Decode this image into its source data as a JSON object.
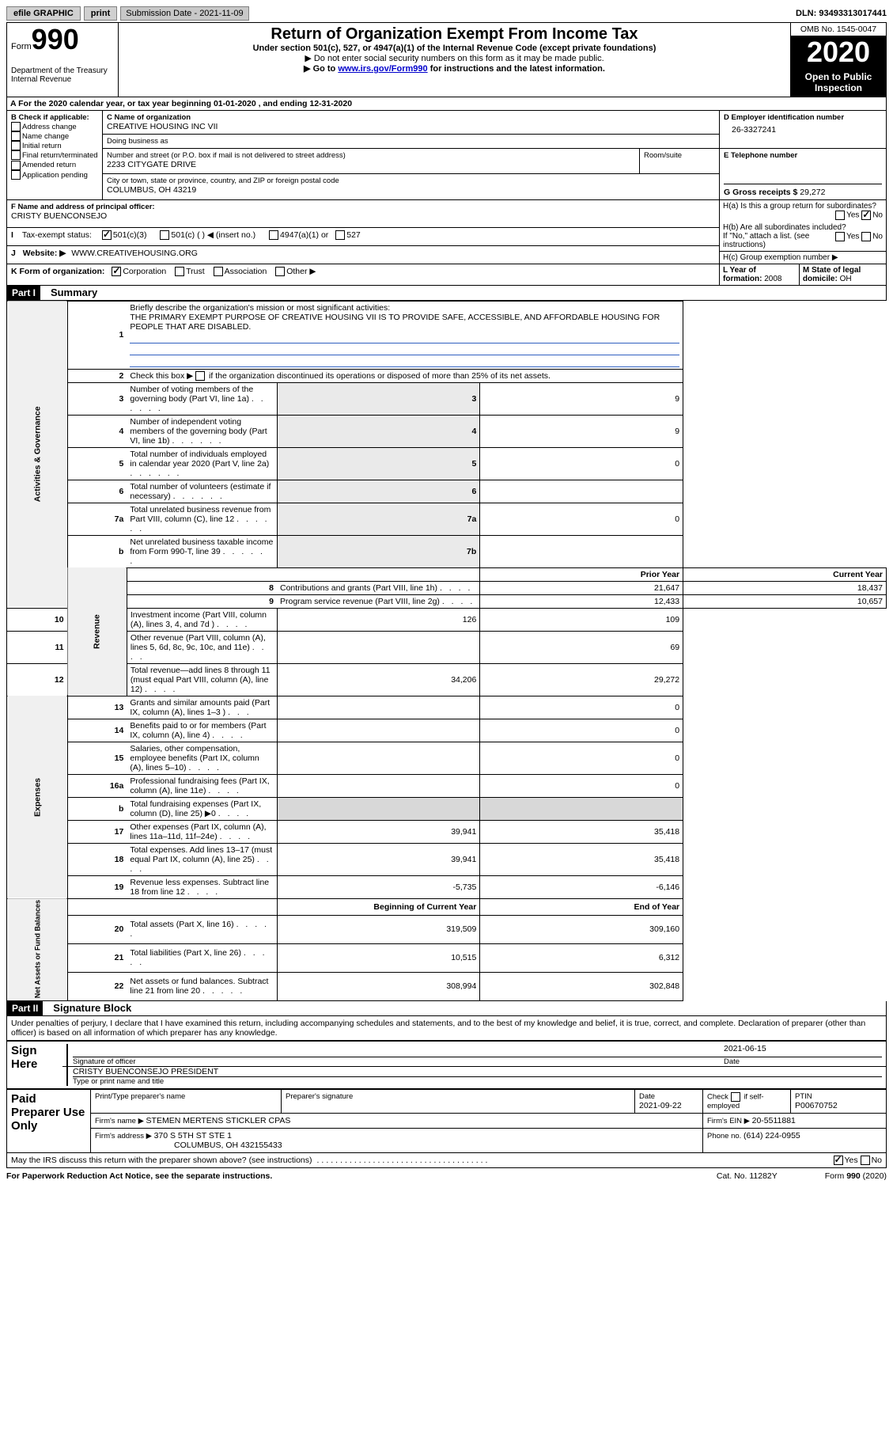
{
  "topbar": {
    "efile_label": "efile GRAPHIC",
    "print_label": "print",
    "submission_label": "Submission Date - ",
    "submission_date": "2021-11-09",
    "dln_label": "DLN: ",
    "dln": "93493313017441"
  },
  "header": {
    "form_prefix": "Form",
    "form_number": "990",
    "dept1": "Department of the Treasury",
    "dept2": "Internal Revenue",
    "title": "Return of Organization Exempt From Income Tax",
    "subtitle": "Under section 501(c), 527, or 4947(a)(1) of the Internal Revenue Code (except private foundations)",
    "line1": "▶ Do not enter social security numbers on this form as it may be made public.",
    "line2_pre": "▶ Go to ",
    "line2_link": "www.irs.gov/Form990",
    "line2_post": " for instructions and the latest information.",
    "omb": "OMB No. 1545-0047",
    "year": "2020",
    "open_public": "Open to Public Inspection"
  },
  "period": {
    "pre": "A For the 2020 calendar year, or tax year beginning ",
    "begin": "01-01-2020",
    "mid": " , and ending ",
    "end": "12-31-2020"
  },
  "sectionB": {
    "label": "B Check if applicable:",
    "opts": [
      "Address change",
      "Name change",
      "Initial return",
      "Final return/terminated",
      "Amended return",
      "Application pending"
    ]
  },
  "sectionC": {
    "name_label": "C Name of organization",
    "name": "CREATIVE HOUSING INC VII",
    "dba_label": "Doing business as",
    "addr_label": "Number and street (or P.O. box if mail is not delivered to street address)",
    "room_label": "Room/suite",
    "addr": "2233 CITYGATE DRIVE",
    "city_label": "City or town, state or province, country, and ZIP or foreign postal code",
    "city": "COLUMBUS, OH  43219"
  },
  "sectionD": {
    "label": "D Employer identification number",
    "ein": "26-3327241"
  },
  "sectionE": {
    "label": "E Telephone number"
  },
  "sectionG": {
    "label": "G Gross receipts $ ",
    "value": "29,272"
  },
  "sectionF": {
    "label": "F Name and address of principal officer:",
    "name": "CRISTY BUENCONSEJO"
  },
  "sectionH": {
    "a": "H(a)  Is this a group return for subordinates?",
    "b": "H(b)  Are all subordinates included?",
    "b_note": "If \"No,\" attach a list. (see instructions)",
    "c": "H(c)  Group exemption number ▶",
    "yes": "Yes",
    "no": "No"
  },
  "sectionI": {
    "label": "I",
    "tax_label": "Tax-exempt status:",
    "opts": [
      "501(c)(3)",
      "501(c) (  ) ◀ (insert no.)",
      "4947(a)(1) or",
      "527"
    ]
  },
  "sectionJ": {
    "label": "J",
    "web_label": "Website: ▶",
    "website": "WWW.CREATIVEHOUSING.ORG"
  },
  "sectionK": {
    "label": "K Form of organization:",
    "opts": [
      "Corporation",
      "Trust",
      "Association",
      "Other ▶"
    ]
  },
  "sectionL": {
    "label": "L Year of formation: ",
    "value": "2008"
  },
  "sectionM": {
    "label": "M State of legal domicile: ",
    "value": "OH"
  },
  "part1": {
    "num": "Part I",
    "title": "Summary",
    "line1_label": "1",
    "line1_text": "Briefly describe the organization's mission or most significant activities:",
    "mission": "THE PRIMARY EXEMPT PURPOSE OF CREATIVE HOUSING VII IS TO PROVIDE SAFE, ACCESSIBLE, AND AFFORDABLE HOUSING FOR PEOPLE THAT ARE DISABLED.",
    "line2_text": "Check this box ▶        if the organization discontinued its operations or disposed of more than 25% of its net assets.",
    "gov_label": "Activities & Governance",
    "rev_label": "Revenue",
    "exp_label": "Expenses",
    "net_label": "Net Assets or Fund Balances",
    "rows_top": [
      {
        "n": "2",
        "ln": ""
      },
      {
        "n": "3",
        "t": "Number of voting members of the governing body (Part VI, line 1a)",
        "ln": "3",
        "v": "9"
      },
      {
        "n": "4",
        "t": "Number of independent voting members of the governing body (Part VI, line 1b)",
        "ln": "4",
        "v": "9"
      },
      {
        "n": "5",
        "t": "Total number of individuals employed in calendar year 2020 (Part V, line 2a)",
        "ln": "5",
        "v": "0"
      },
      {
        "n": "6",
        "t": "Total number of volunteers (estimate if necessary)",
        "ln": "6",
        "v": ""
      },
      {
        "n": "7a",
        "t": "Total unrelated business revenue from Part VIII, column (C), line 12",
        "ln": "7a",
        "v": "0"
      },
      {
        "n": "b",
        "t": "Net unrelated business taxable income from Form 990-T, line 39",
        "ln": "7b",
        "v": ""
      }
    ],
    "col_prior": "Prior Year",
    "col_current": "Current Year",
    "col_begin": "Beginning of Current Year",
    "col_end": "End of Year",
    "rows_rev": [
      {
        "n": "8",
        "t": "Contributions and grants (Part VIII, line 1h)",
        "p": "21,647",
        "c": "18,437"
      },
      {
        "n": "9",
        "t": "Program service revenue (Part VIII, line 2g)",
        "p": "12,433",
        "c": "10,657"
      },
      {
        "n": "10",
        "t": "Investment income (Part VIII, column (A), lines 3, 4, and 7d )",
        "p": "126",
        "c": "109"
      },
      {
        "n": "11",
        "t": "Other revenue (Part VIII, column (A), lines 5, 6d, 8c, 9c, 10c, and 11e)",
        "p": "",
        "c": "69"
      },
      {
        "n": "12",
        "t": "Total revenue—add lines 8 through 11 (must equal Part VIII, column (A), line 12)",
        "p": "34,206",
        "c": "29,272"
      }
    ],
    "rows_exp": [
      {
        "n": "13",
        "t": "Grants and similar amounts paid (Part IX, column (A), lines 1–3 )",
        "p": "",
        "c": "0"
      },
      {
        "n": "14",
        "t": "Benefits paid to or for members (Part IX, column (A), line 4)",
        "p": "",
        "c": "0"
      },
      {
        "n": "15",
        "t": "Salaries, other compensation, employee benefits (Part IX, column (A), lines 5–10)",
        "p": "",
        "c": "0"
      },
      {
        "n": "16a",
        "t": "Professional fundraising fees (Part IX, column (A), line 11e)",
        "p": "",
        "c": "0"
      },
      {
        "n": "b",
        "t": "Total fundraising expenses (Part IX, column (D), line 25) ▶0",
        "p": "GRAY",
        "c": "GRAY"
      },
      {
        "n": "17",
        "t": "Other expenses (Part IX, column (A), lines 11a–11d, 11f–24e)",
        "p": "39,941",
        "c": "35,418"
      },
      {
        "n": "18",
        "t": "Total expenses. Add lines 13–17 (must equal Part IX, column (A), line 25)",
        "p": "39,941",
        "c": "35,418"
      },
      {
        "n": "19",
        "t": "Revenue less expenses. Subtract line 18 from line 12",
        "p": "-5,735",
        "c": "-6,146"
      }
    ],
    "rows_net": [
      {
        "n": "20",
        "t": "Total assets (Part X, line 16)",
        "p": "319,509",
        "c": "309,160"
      },
      {
        "n": "21",
        "t": "Total liabilities (Part X, line 26)",
        "p": "10,515",
        "c": "6,312"
      },
      {
        "n": "22",
        "t": "Net assets or fund balances. Subtract line 21 from line 20",
        "p": "308,994",
        "c": "302,848"
      }
    ]
  },
  "part2": {
    "num": "Part II",
    "title": "Signature Block",
    "perjury": "Under penalties of perjury, I declare that I have examined this return, including accompanying schedules and statements, and to the best of my knowledge and belief, it is true, correct, and complete. Declaration of preparer (other than officer) is based on all information of which preparer has any knowledge.",
    "sign_here": "Sign Here",
    "sig_officer": "Signature of officer",
    "sig_date": "2021-06-15",
    "date_label": "Date",
    "officer_name": "CRISTY BUENCONSEJO  PRESIDENT",
    "officer_sub": "Type or print name and title",
    "paid_prep": "Paid Preparer Use Only",
    "prep_name_label": "Print/Type preparer's name",
    "prep_sig_label": "Preparer's signature",
    "prep_date_label": "Date",
    "prep_date": "2021-09-22",
    "check_if": "Check         if self-employed",
    "ptin_label": "PTIN",
    "ptin": "P00670752",
    "firm_name_label": "Firm's name    ▶ ",
    "firm_name": "STEMEN MERTENS STICKLER CPAS",
    "firm_ein_label": "Firm's EIN ▶ ",
    "firm_ein": "20-5511881",
    "firm_addr_label": "Firm's address ▶ ",
    "firm_addr1": "370 S 5TH ST STE 1",
    "firm_addr2": "COLUMBUS, OH  432155433",
    "phone_label": "Phone no. ",
    "phone": "(614) 224-0955",
    "may_irs": "May the IRS discuss this return with the preparer shown above? (see instructions)",
    "yes": "Yes",
    "no": "No"
  },
  "footer": {
    "paperwork": "For Paperwork Reduction Act Notice, see the separate instructions.",
    "cat": "Cat. No. 11282Y",
    "form": "Form ",
    "form_num": "990",
    "form_year": " (2020)"
  }
}
